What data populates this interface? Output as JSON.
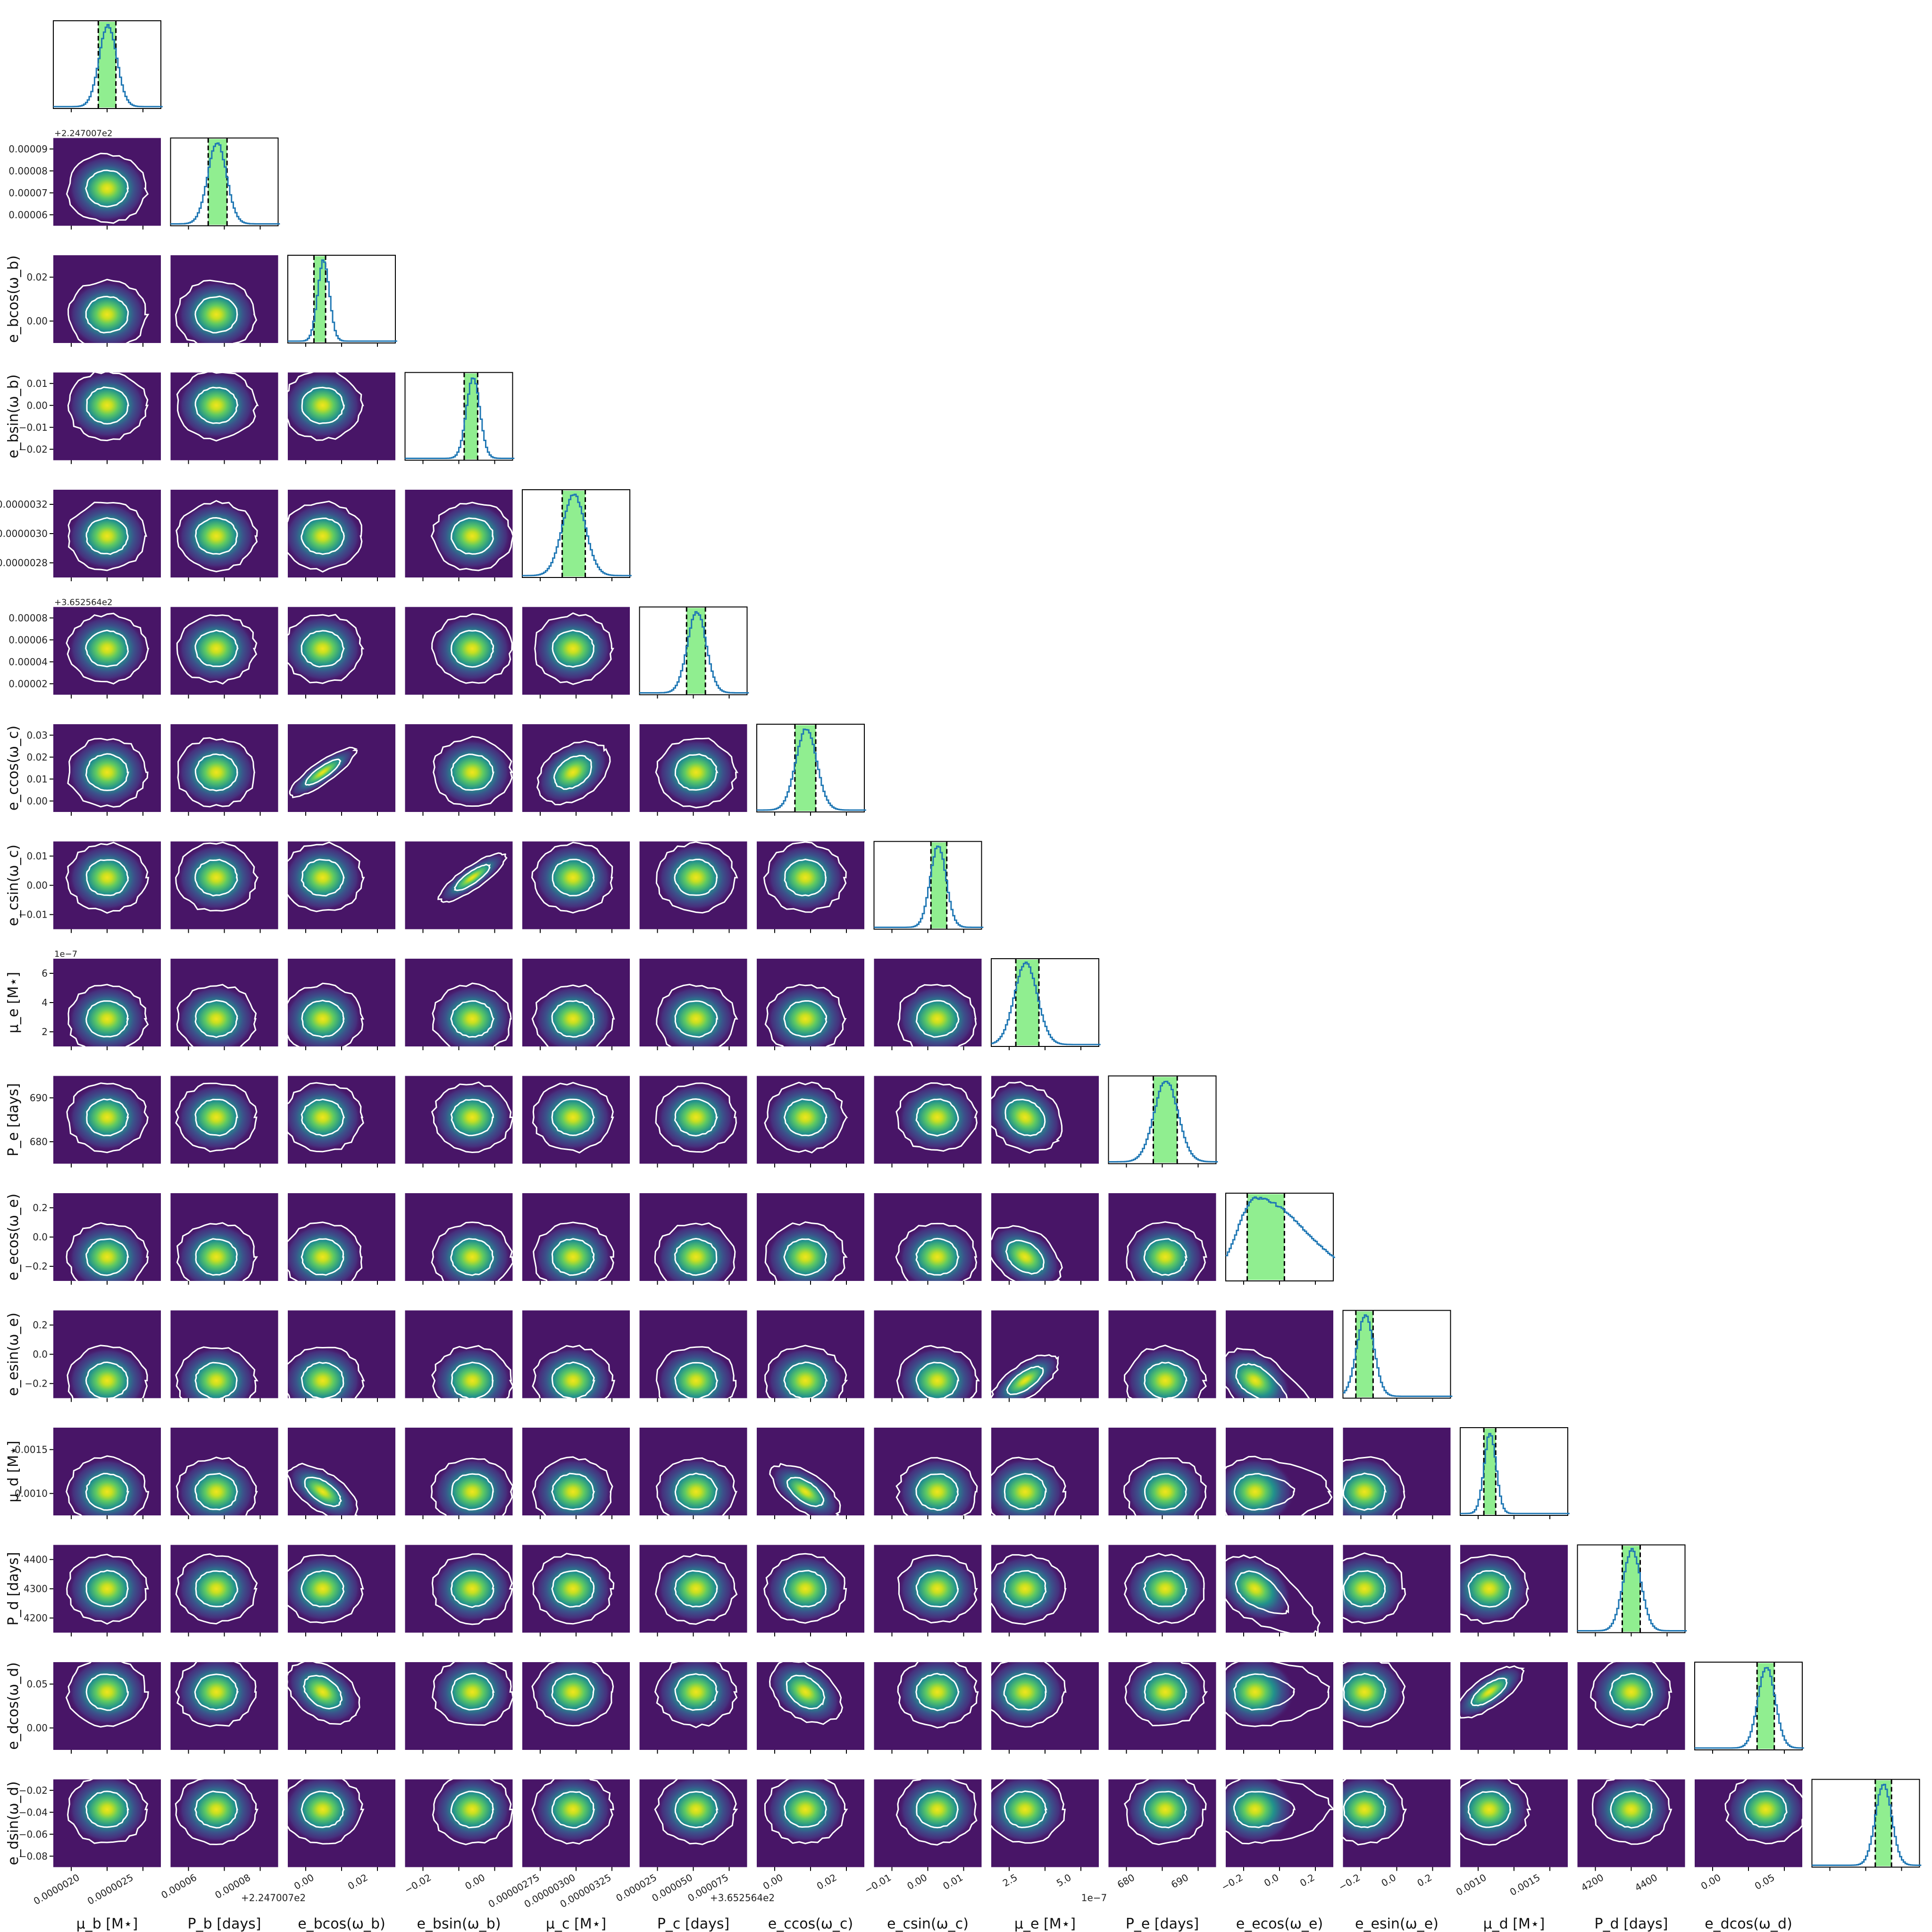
{
  "chart_data": {
    "type": "corner",
    "parameters": [
      {
        "id": "mu_b",
        "label": "μ_b [M☉]",
        "text": "$\\mu_b$ [$M_\\star$]",
        "ticks": [
          "0.0000020",
          "0.0000025"
        ],
        "ticks_y": [],
        "range": [
          1.8e-06,
          2.9e-06
        ],
        "mode": 2.35e-06,
        "ci": [
          2.26e-06,
          2.44e-06
        ],
        "offset": ""
      },
      {
        "id": "P_b",
        "label": "P_b [days]",
        "ticks": [
          "0.00006",
          "0.00008"
        ],
        "ticks_y": [
          "0.00009",
          "0.00008",
          "0.00007",
          "0.00006"
        ],
        "range": [
          5.5e-05,
          9.5e-05
        ],
        "mode": 7.2e-05,
        "ci": [
          6.9e-05,
          7.6e-05
        ],
        "offset": "+2.247007e2"
      },
      {
        "id": "ecosw_b",
        "label": "e_b cos(ω_b)",
        "ticks": [
          "0.00",
          "0.02"
        ],
        "ticks_y": [
          "0.02",
          "0.00"
        ],
        "range": [
          -0.012,
          0.025
        ],
        "mode": 0.0,
        "ci": [
          -0.003,
          0.001
        ],
        "offset": ""
      },
      {
        "id": "esinw_b",
        "label": "e_b sin(ω_b)",
        "ticks": [
          "−0.02",
          "0.00"
        ],
        "ticks_y": [
          "0.01",
          "0.00",
          "−0.01",
          "−0.02"
        ],
        "range": [
          -0.025,
          0.015
        ],
        "mode": 0.0,
        "ci": [
          -0.003,
          0.002
        ],
        "offset": ""
      },
      {
        "id": "mu_c",
        "label": "μ_c [M☉]",
        "ticks": [
          "0.00000275",
          "0.00000300",
          "0.00000325"
        ],
        "ticks_y": [
          "0.0000032",
          "0.0000030",
          "0.0000028"
        ],
        "range": [
          2.7e-06,
          3.4e-06
        ],
        "mode": 3.03e-06,
        "ci": [
          2.96e-06,
          3.11e-06
        ],
        "offset": ""
      },
      {
        "id": "P_c",
        "label": "P_c [days]",
        "ticks": [
          "0.000025",
          "0.000050",
          "0.000075"
        ],
        "ticks_y": [
          "0.00008",
          "0.00006",
          "0.00004",
          "0.00002"
        ],
        "range": [
          1.5e-05,
          9.5e-05
        ],
        "mode": 5.7e-05,
        "ci": [
          5e-05,
          6.4e-05
        ],
        "offset": "+3.652564e2"
      },
      {
        "id": "ecosw_c",
        "label": "e_c cos(ω_c)",
        "ticks": [
          "0.00",
          "0.02"
        ],
        "ticks_y": [
          "0.03",
          "0.02",
          "0.01",
          "0.00"
        ],
        "range": [
          -0.001,
          0.03
        ],
        "mode": 0.013,
        "ci": [
          0.01,
          0.016
        ],
        "offset": ""
      },
      {
        "id": "esinw_c",
        "label": "e_c sin(ω_c)",
        "ticks": [
          "−0.01",
          "0.00",
          "0.01"
        ],
        "ticks_y": [
          "0.01",
          "0.00",
          "−0.01"
        ],
        "range": [
          -0.018,
          0.016
        ],
        "mode": 0.002,
        "ci": [
          0.0,
          0.005
        ],
        "offset": ""
      },
      {
        "id": "mu_e",
        "label": "μ_e [M☉]",
        "ticks": [
          "2.5",
          "5.0"
        ],
        "ticks_y": [
          "6",
          "4",
          "2"
        ],
        "range": [
          0.0,
          7.0
        ],
        "mode": 2.2,
        "ci": [
          1.6,
          3.1
        ],
        "offset": "1e−7"
      },
      {
        "id": "P_e",
        "label": "P_e [days]",
        "ticks": [
          "680",
          "690"
        ],
        "ticks_y": [
          "690",
          "680"
        ],
        "range": [
          679,
          697
        ],
        "mode": 688.5,
        "ci": [
          686.5,
          690.5
        ],
        "offset": ""
      },
      {
        "id": "ecosw_e",
        "label": "e_e cos(ω_e)",
        "ticks": [
          "−0.2",
          "0.0",
          "0.2"
        ],
        "ticks_y": [
          "0.2",
          "0.0",
          "−0.2"
        ],
        "range": [
          -0.25,
          0.3
        ],
        "mode": -0.1,
        "ci": [
          -0.14,
          0.05
        ],
        "offset": ""
      },
      {
        "id": "esinw_e",
        "label": "e_e sin(ω_e)",
        "ticks": [
          "−0.2",
          "0.0",
          "0.2"
        ],
        "ticks_y": [
          "0.2",
          "0.0",
          "−0.2"
        ],
        "range": [
          -0.25,
          0.25
        ],
        "mode": -0.15,
        "ci": [
          -0.19,
          -0.11
        ],
        "offset": ""
      },
      {
        "id": "mu_d",
        "label": "μ_d [M☉]",
        "ticks": [
          "0.0010",
          "0.0015"
        ],
        "ticks_y": [
          "0.0015",
          "0.0010"
        ],
        "range": [
          0.0008,
          0.0018
        ],
        "mode": 0.00107,
        "ci": [
          0.00102,
          0.00113
        ],
        "offset": ""
      },
      {
        "id": "P_d",
        "label": "P_d [days]",
        "ticks": [
          "4200",
          "4400"
        ],
        "ticks_y": [
          "4400",
          "4300",
          "4200"
        ],
        "range": [
          4180,
          4480
        ],
        "mode": 4330,
        "ci": [
          4305,
          4355
        ],
        "offset": ""
      },
      {
        "id": "ecosw_d",
        "label": "e_d cos(ω_d)",
        "ticks": [
          "0.00",
          "0.05"
        ],
        "ticks_y": [
          "0.05",
          "0.00"
        ],
        "range": [
          -0.03,
          0.07
        ],
        "mode": 0.036,
        "ci": [
          0.028,
          0.044
        ],
        "offset": ""
      },
      {
        "id": "esinw_d",
        "label": "e_d sin(ω_d)",
        "ticks": [],
        "ticks_y": [
          "−0.02",
          "−0.04",
          "−0.06",
          "−0.08"
        ],
        "range": [
          -0.085,
          -0.012
        ],
        "mode": -0.037,
        "ci": [
          -0.042,
          -0.031
        ],
        "offset": ""
      }
    ],
    "axis_labels": {
      "bottom": [
        "μ_b [M⋆]",
        "P_b [days]",
        "e_bcos(ω_b)",
        "e_bsin(ω_b)",
        "μ_c [M⋆]",
        "P_c [days]",
        "e_ccos(ω_c)",
        "e_csin(ω_c)",
        "μ_e [M⋆]",
        "P_e [days]",
        "e_ecos(ω_e)",
        "e_esin(ω_e)",
        "μ_d [M⋆]",
        "P_d [days]",
        "e_dcos(ω_d)"
      ],
      "left": [
        "",
        "",
        "e_bcos(ω_b)",
        "e_bsin(ω_b)",
        "",
        "",
        "e_ccos(ω_c)",
        "e_csin(ω_c)",
        "μ_e [M⋆]",
        "P_e [days]",
        "e_ecos(ω_e)",
        "e_esin(ω_e)",
        "μ_d [M⋆]",
        "P_d [days]",
        "e_dcos(ω_d)",
        "e_dsin(ω_d)"
      ]
    },
    "bottom_offsets": [
      "",
      "+2.247007e2",
      "",
      "",
      "",
      "+3.652564e2",
      "",
      "",
      "1e−7",
      "",
      "",
      "",
      "",
      "",
      "",
      ""
    ],
    "left_offsets": [
      "",
      "+2.247007e2",
      "",
      "",
      "",
      "+3.652564e2",
      "",
      "",
      "1e−7",
      "",
      "",
      "",
      "",
      "",
      "",
      ""
    ],
    "colors": {
      "background": "#481567",
      "contour": "#ffffff",
      "hist_line": "#1f77b4",
      "ci_fill": "#90ee90",
      "ci_edge": "#000000"
    },
    "credible_interval": "68%"
  }
}
